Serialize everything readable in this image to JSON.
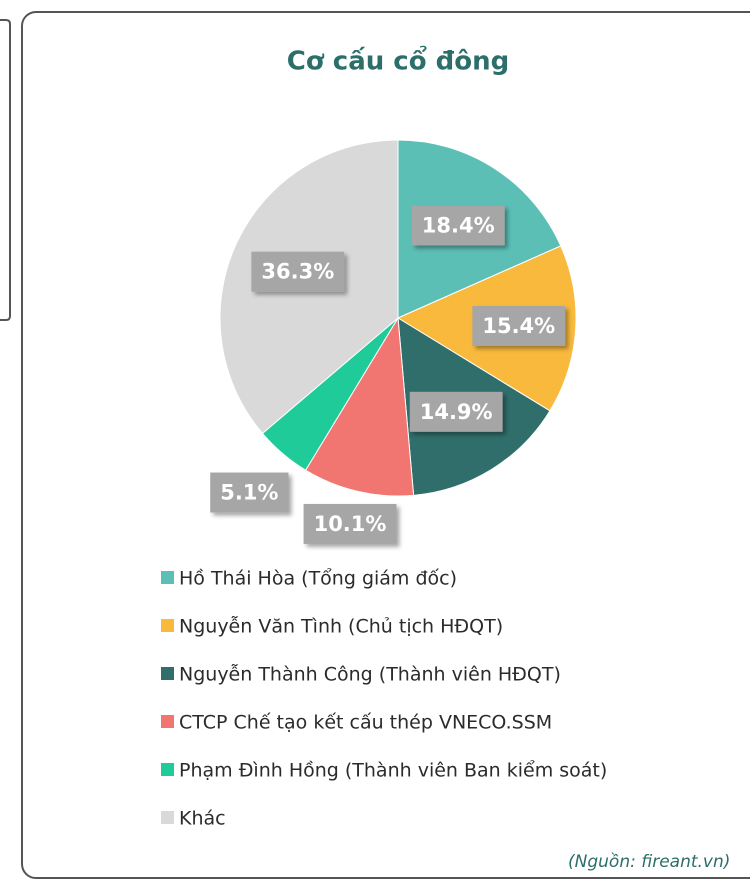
{
  "chart_data": {
    "type": "pie",
    "title": "Cơ cấu cổ đông",
    "categories": [
      "Hồ Thái Hòa (Tổng giám đốc)",
      "Nguyễn Văn Tình (Chủ tịch HĐQT)",
      "Nguyễn Thành Công (Thành viên HĐQT)",
      "CTCP Chế tạo kết cấu thép VNECO.SSM",
      "Phạm Đình Hồng (Thành viên Ban kiểm soát)",
      "Khác"
    ],
    "values": [
      18.4,
      15.4,
      14.9,
      10.1,
      5.1,
      36.3
    ],
    "value_labels": [
      "18.4%",
      "15.4%",
      "14.9%",
      "10.1%",
      "5.1%",
      "36.3%"
    ],
    "colors": [
      "#5bbfb6",
      "#f9b93c",
      "#2f6e6a",
      "#f17672",
      "#1fcc99",
      "#d9d9d9"
    ],
    "source": "(Nguồn: fireant.vn)"
  }
}
